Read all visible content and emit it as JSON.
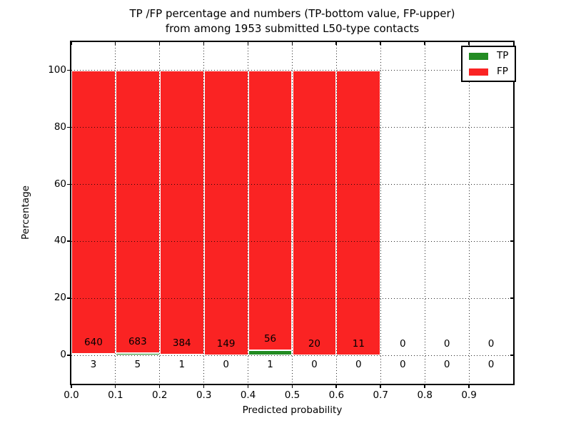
{
  "chart_data": {
    "type": "bar",
    "stacked": true,
    "normalized": "each bin scaled to 100%",
    "title_line1": "TP /FP percentage and numbers (TP-bottom value, FP-upper)",
    "title_line2": "from among 1953 submitted L50-type contacts",
    "xlabel": "Predicted probability",
    "ylabel": "Percentage",
    "bin_width": 0.1,
    "bin_starts": [
      0.0,
      0.1,
      0.2,
      0.3,
      0.4,
      0.5,
      0.6,
      0.7,
      0.8,
      0.9
    ],
    "series": [
      {
        "name": "TP",
        "color": "#228b22",
        "counts": [
          3,
          5,
          1,
          0,
          1,
          0,
          0,
          0,
          0,
          0
        ]
      },
      {
        "name": "FP",
        "color": "#fa2323",
        "counts": [
          640,
          683,
          384,
          149,
          56,
          20,
          11,
          0,
          0,
          0
        ]
      }
    ],
    "xticks": [
      "0.0",
      "0.1",
      "0.2",
      "0.3",
      "0.4",
      "0.5",
      "0.6",
      "0.7",
      "0.8",
      "0.9"
    ],
    "yticks": [
      "0",
      "20",
      "40",
      "60",
      "80",
      "100"
    ],
    "ytick_values": [
      0,
      20,
      40,
      60,
      80,
      100
    ],
    "xlim": [
      0.0,
      1.0
    ],
    "ylim": [
      -10,
      110
    ],
    "grid": "dotted black, on",
    "legend": {
      "position": "upper right",
      "entries": [
        "TP",
        "FP"
      ]
    },
    "axis_color": "#000000",
    "background_color": "#ffffff",
    "label_color": "#000000"
  }
}
